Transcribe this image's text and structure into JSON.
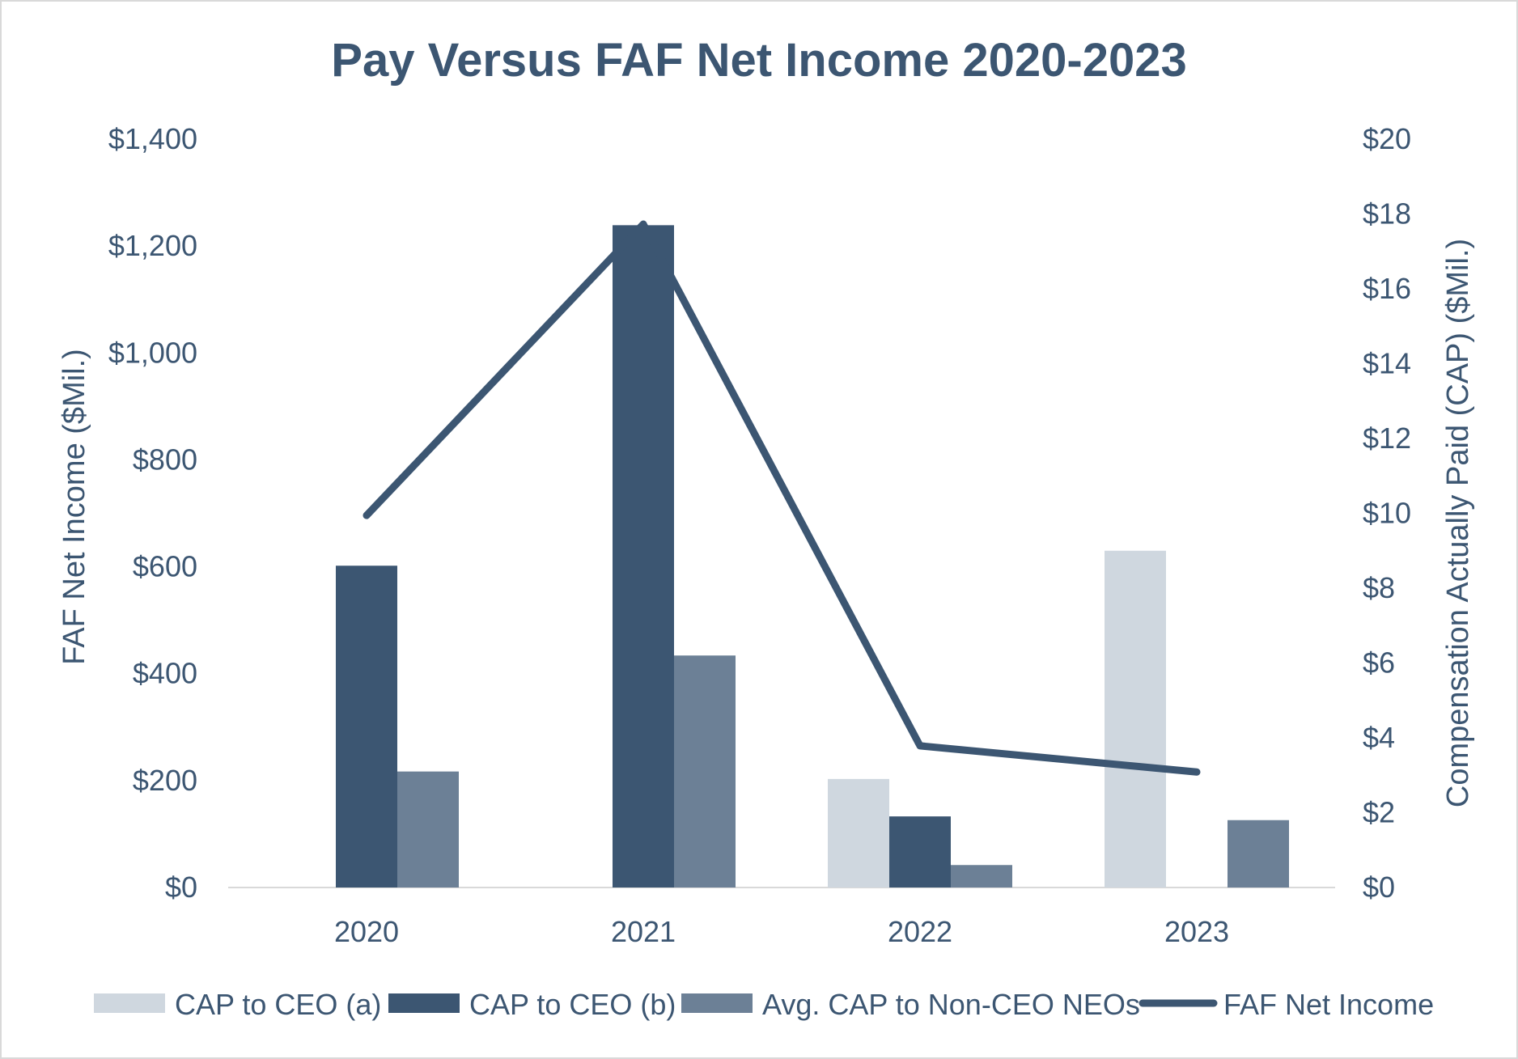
{
  "colors": {
    "text": "#3c5672",
    "axis_line": "#d9d9d9",
    "cap_ceo_a": "#cfd7df",
    "cap_ceo_b": "#3c5672",
    "avg_cap_neo": "#6c8096",
    "net_income": "#3c5672"
  },
  "chart_data": {
    "type": "bar",
    "title": "Pay Versus FAF Net Income 2020-2023",
    "categories": [
      "2020",
      "2021",
      "2022",
      "2023"
    ],
    "ylabel": "FAF Net Income ($Mil.)",
    "y2label": "Compensation Actually Paid (CAP) ($Mil.)",
    "ylim": [
      0,
      1400
    ],
    "y2lim": [
      0,
      20
    ],
    "yticks": [
      {
        "value": 0,
        "label": "$0"
      },
      {
        "value": 200,
        "label": "$200"
      },
      {
        "value": 400,
        "label": "$400"
      },
      {
        "value": 600,
        "label": "$600"
      },
      {
        "value": 800,
        "label": "$800"
      },
      {
        "value": 1000,
        "label": "$1,000"
      },
      {
        "value": 1200,
        "label": "$1,200"
      },
      {
        "value": 1400,
        "label": "$1,400"
      }
    ],
    "y2ticks": [
      {
        "value": 0,
        "label": "$0"
      },
      {
        "value": 2,
        "label": "$2"
      },
      {
        "value": 4,
        "label": "$4"
      },
      {
        "value": 6,
        "label": "$6"
      },
      {
        "value": 8,
        "label": "$8"
      },
      {
        "value": 10,
        "label": "$10"
      },
      {
        "value": 12,
        "label": "$12"
      },
      {
        "value": 14,
        "label": "$14"
      },
      {
        "value": 16,
        "label": "$16"
      },
      {
        "value": 18,
        "label": "$18"
      },
      {
        "value": 20,
        "label": "$20"
      }
    ],
    "series": [
      {
        "name": "CAP to CEO (a)",
        "kind": "bar",
        "axis": "right",
        "color_key": "cap_ceo_a",
        "values": [
          null,
          null,
          2.9,
          9.0
        ]
      },
      {
        "name": "CAP to CEO (b)",
        "kind": "bar",
        "axis": "right",
        "color_key": "cap_ceo_b",
        "values": [
          8.6,
          17.7,
          1.9,
          null
        ]
      },
      {
        "name": "Avg. CAP to Non-CEO NEOs",
        "kind": "bar",
        "axis": "right",
        "color_key": "avg_cap_neo",
        "values": [
          3.1,
          6.2,
          0.6,
          1.8
        ]
      },
      {
        "name": "FAF Net Income",
        "kind": "line",
        "axis": "left",
        "color_key": "net_income",
        "values": [
          696,
          1241,
          265,
          216
        ]
      }
    ],
    "legend_position": "bottom",
    "grid": false
  }
}
